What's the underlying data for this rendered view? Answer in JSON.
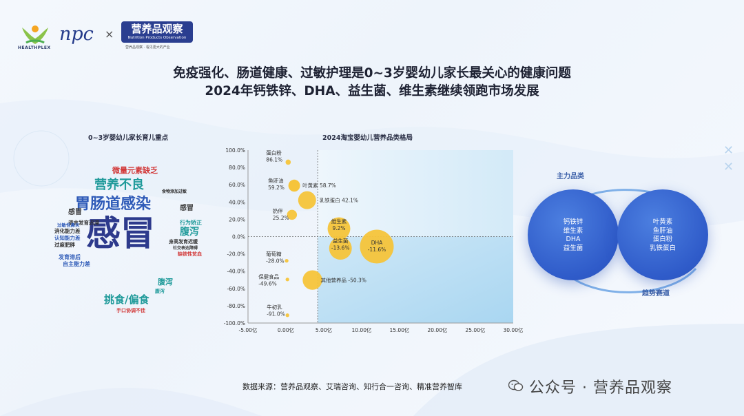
{
  "header": {
    "logo1_text": "HEALTHPLEX",
    "logo2_text": "npc",
    "separator": "×",
    "logo3_title": "营养品观察",
    "logo3_sub": "Nutrition Products Observation",
    "logo3_tagline": "营养品观察 · 看见更大的产业"
  },
  "title": {
    "line1": "免疫强化、肠道健康、过敏护理是0~3岁婴幼儿家长最关心的健康问题",
    "line2": "2024年钙铁锌、DHA、益生菌、维生素继续领跑市场发展"
  },
  "wordcloud": {
    "title": "0~3岁婴幼儿家长育儿重点",
    "words": [
      {
        "text": "感冒",
        "color": "#2d3a8c"
      },
      {
        "text": "胃肠道感染",
        "color": "#2f5bb8"
      },
      {
        "text": "营养不良",
        "color": "#1f9a9a"
      },
      {
        "text": "腹泻",
        "color": "#1f9a9a"
      },
      {
        "text": "挑食/偏食",
        "color": "#1f9a9a"
      },
      {
        "text": "微量元素缺乏",
        "color": "#d23a3a"
      },
      {
        "text": "感冒",
        "color": "#444444"
      },
      {
        "text": "感冒",
        "color": "#444444"
      },
      {
        "text": "行为矫正",
        "color": "#1f9a9a"
      },
      {
        "text": "腹泻",
        "color": "#1f9a9a"
      },
      {
        "text": "缺铁性贫血",
        "color": "#d23a3a"
      },
      {
        "text": "发育滞后",
        "color": "#2f5bb8"
      },
      {
        "text": "自主能力差",
        "color": "#2f5bb8"
      },
      {
        "text": "语言发育迟滞",
        "color": "#333333"
      },
      {
        "text": "消化能力差",
        "color": "#333333"
      },
      {
        "text": "认知能力差",
        "color": "#2f5bb8"
      },
      {
        "text": "过度肥胖",
        "color": "#333333"
      },
      {
        "text": "身高发育迟缓",
        "color": "#333333"
      },
      {
        "text": "社交表达障碍",
        "color": "#333333"
      },
      {
        "text": "手口协调不佳",
        "color": "#d23a3a"
      },
      {
        "text": "腹泻",
        "color": "#1f9a9a"
      },
      {
        "text": "食物添加过敏",
        "color": "#333333"
      },
      {
        "text": "过敏性鼻炎",
        "color": "#2f5bb8"
      }
    ]
  },
  "chart_data": {
    "type": "scatter",
    "title": "2024淘宝婴幼儿营养品类格局",
    "xlabel": "",
    "ylabel": "",
    "xlim": [
      -5,
      30
    ],
    "ylim": [
      -100,
      100
    ],
    "x_ticks": [
      "-5.00亿",
      "0.00亿",
      "5.00亿",
      "10.00亿",
      "15.00亿",
      "20.00亿",
      "25.00亿",
      "30.00亿"
    ],
    "y_ticks": [
      "100.0%",
      "80.0%",
      "60.0%",
      "40.0%",
      "20.0%",
      "0.0%",
      "-20.0%",
      "-40.0%",
      "-60.0%",
      "-80.0%",
      "-100.0%"
    ],
    "points": [
      {
        "name": "蛋白粉",
        "value_label": "86.1%",
        "x": 0.3,
        "y": 86.1,
        "size": 2
      },
      {
        "name": "鱼肝油",
        "value_label": "59.2%",
        "x": 1.1,
        "y": 59.2,
        "size": 6
      },
      {
        "name": "叶黄素",
        "value_label": "58.7%",
        "x": 1.1,
        "y": 58.7,
        "size": 6
      },
      {
        "name": "乳铁蛋白",
        "value_label": "42.1%",
        "x": 2.8,
        "y": 42.1,
        "size": 10
      },
      {
        "name": "奶伴",
        "value_label": "25.2%",
        "x": 0.8,
        "y": 25.2,
        "size": 5
      },
      {
        "name": "维生素",
        "value_label": "9.2%",
        "x": 7.0,
        "y": 9.2,
        "size": 13
      },
      {
        "name": "益生菌",
        "value_label": "-13.6%",
        "x": 7.2,
        "y": -13.6,
        "size": 13
      },
      {
        "name": "DHA",
        "value_label": "-11.6%",
        "x": 12.0,
        "y": -11.6,
        "size": 20
      },
      {
        "name": "葡萄糖",
        "value_label": "-28.0%",
        "x": 0.1,
        "y": -28.0,
        "size": 1
      },
      {
        "name": "其他营养品",
        "value_label": "-50.3%",
        "x": 3.5,
        "y": -50.3,
        "size": 11
      },
      {
        "name": "保健食品",
        "value_label": "-49.6%",
        "x": 0.2,
        "y": -49.6,
        "size": 1
      },
      {
        "name": "牛初乳",
        "value_label": "-91.0%",
        "x": 0.2,
        "y": -91.0,
        "size": 1
      }
    ],
    "reference_lines": {
      "x": 4.2,
      "y": 0
    }
  },
  "right": {
    "main_label": "主力品类",
    "trend_label": "趋势赛道",
    "main_items": [
      "钙铁锌",
      "维生素",
      "DHA",
      "益生菌"
    ],
    "trend_items": [
      "叶黄素",
      "鱼肝油",
      "蛋白粉",
      "乳铁蛋白"
    ]
  },
  "footer": {
    "source": "数据来源：营养品观察、艾瑞咨询、知行合一咨询、精准营养智库",
    "watermark": "公众号 · 营养品观察"
  },
  "colors": {
    "bubble": "#f5c43a",
    "accent": "#2f5bc9",
    "title": "#1e2233"
  }
}
